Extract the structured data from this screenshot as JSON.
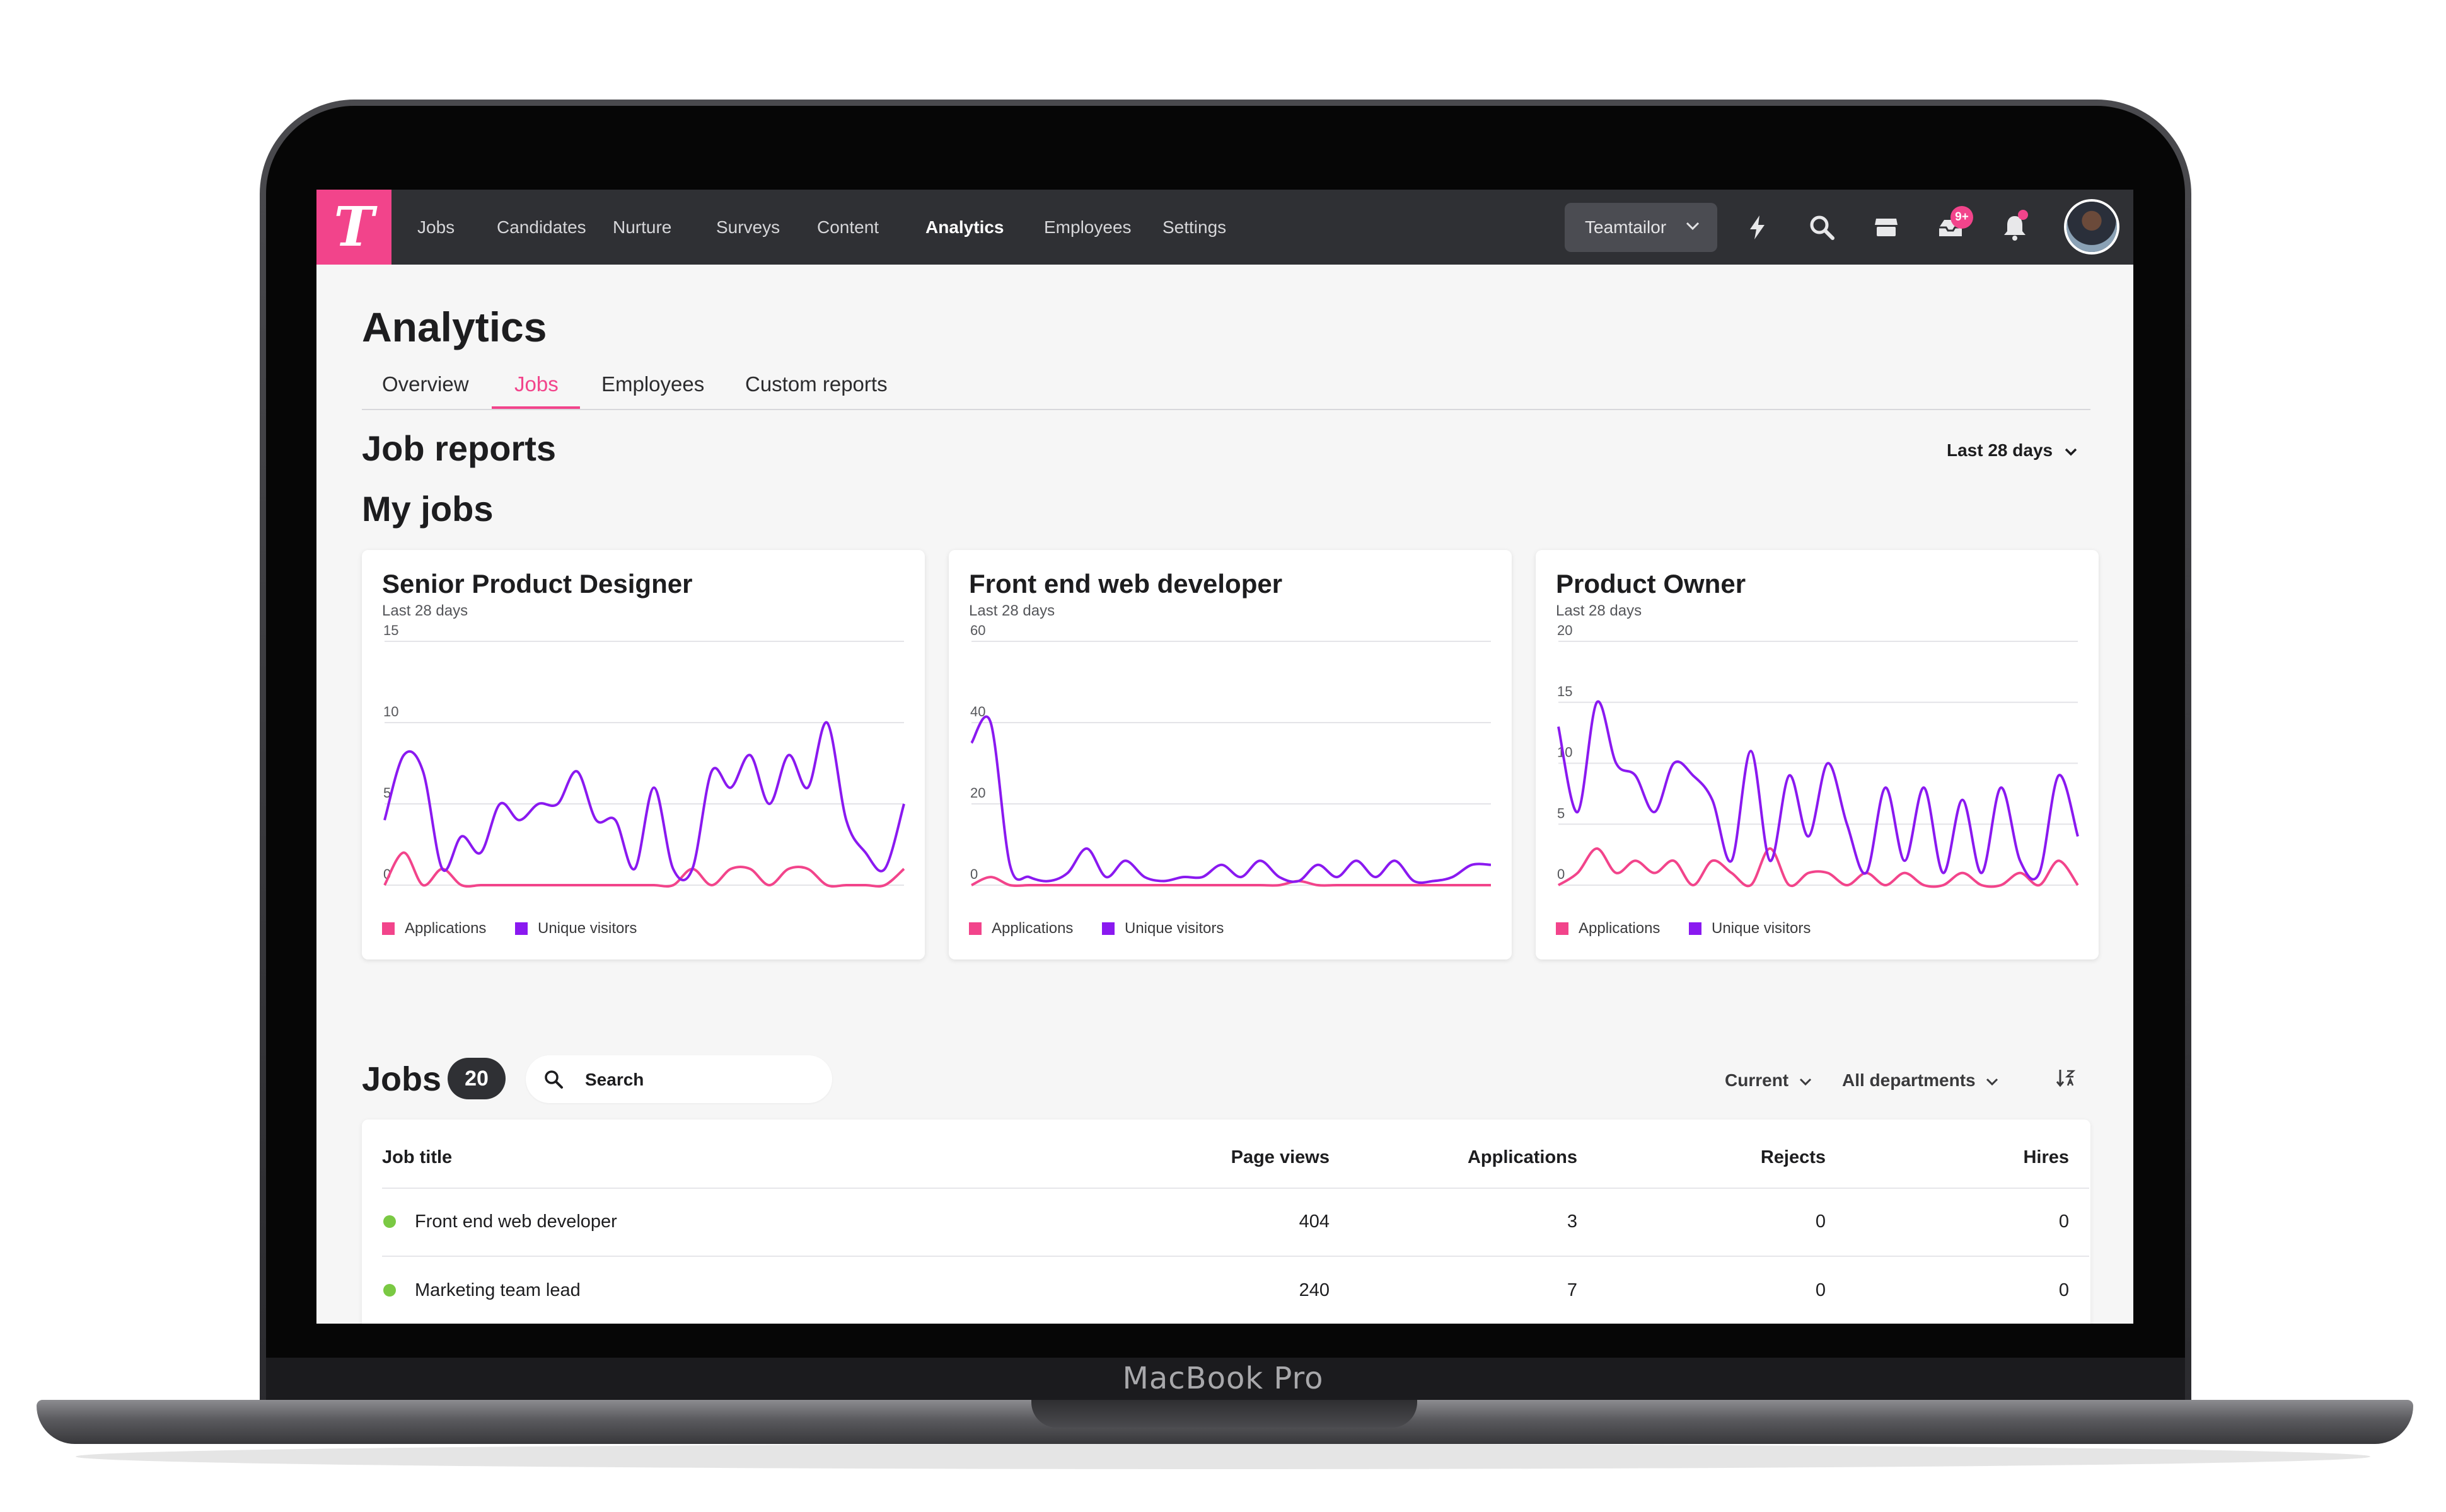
{
  "device": {
    "label": "MacBook Pro"
  },
  "app": {
    "logo_letter": "T",
    "nav": [
      "Jobs",
      "Candidates",
      "Nurture",
      "Surveys",
      "Content",
      "Analytics",
      "Employees",
      "Settings"
    ],
    "active_nav": "Analytics",
    "company_select": "Teamtailor",
    "inbox_badge": "9+",
    "icons": [
      "lightning-icon",
      "search-icon",
      "store-icon",
      "inbox-icon",
      "bell-icon",
      "avatar"
    ]
  },
  "page": {
    "title": "Analytics",
    "tabs": [
      "Overview",
      "Jobs",
      "Employees",
      "Custom reports"
    ],
    "active_tab": "Jobs",
    "section_title": "Job reports",
    "range_select": "Last 28 days",
    "subsection_title": "My jobs"
  },
  "colors": {
    "brand": "#f2448b",
    "applications": "#f2448b",
    "visitors": "#8a19f0",
    "status_active": "#7ac943"
  },
  "chart_data": [
    {
      "type": "line",
      "title": "Senior Product Designer",
      "subtitle": "Last 28 days",
      "ylim": [
        0,
        15
      ],
      "yticks": [
        "0",
        "5",
        "10",
        "15"
      ],
      "grid": true,
      "legend": "bottom-left",
      "series": [
        {
          "name": "Applications",
          "values": [
            0,
            2,
            0,
            1,
            0,
            0,
            0,
            0,
            0,
            0,
            0,
            0,
            0,
            0,
            0,
            0,
            1,
            0,
            1,
            1,
            0,
            1,
            1,
            0,
            0,
            0,
            0,
            1
          ]
        },
        {
          "name": "Unique visitors",
          "values": [
            4,
            8,
            7,
            1,
            3,
            2,
            5,
            4,
            5,
            5,
            7,
            4,
            4,
            1,
            6,
            1,
            1,
            7,
            6,
            8,
            5,
            8,
            6,
            10,
            4,
            2,
            1,
            5
          ]
        }
      ]
    },
    {
      "type": "line",
      "title": "Front end web developer",
      "subtitle": "Last 28 days",
      "ylim": [
        0,
        60
      ],
      "yticks": [
        "0",
        "20",
        "40",
        "60"
      ],
      "grid": true,
      "legend": "bottom-left",
      "series": [
        {
          "name": "Applications",
          "values": [
            0,
            2,
            0,
            0,
            0,
            0,
            0,
            0,
            0,
            0,
            0,
            0,
            0,
            0,
            0,
            0,
            0,
            1,
            0,
            0,
            0,
            0,
            0,
            0,
            0,
            0,
            0,
            0
          ]
        },
        {
          "name": "Unique visitors",
          "values": [
            35,
            40,
            5,
            2,
            1,
            3,
            9,
            2,
            6,
            2,
            1,
            2,
            2,
            5,
            2,
            6,
            2,
            1,
            5,
            2,
            6,
            2,
            6,
            1,
            1,
            2,
            5,
            5
          ]
        }
      ]
    },
    {
      "type": "line",
      "title": "Product Owner",
      "subtitle": "Last 28 days",
      "ylim": [
        0,
        20
      ],
      "yticks": [
        "0",
        "5",
        "10",
        "15",
        "20"
      ],
      "grid": true,
      "legend": "bottom-left",
      "series": [
        {
          "name": "Applications",
          "values": [
            0,
            1,
            3,
            1,
            2,
            1,
            2,
            0,
            2,
            1,
            0,
            3,
            0,
            1,
            1,
            0,
            1,
            0,
            1,
            0,
            0,
            1,
            0,
            0,
            1,
            0,
            2,
            0
          ]
        },
        {
          "name": "Unique visitors",
          "values": [
            13,
            6,
            15,
            10,
            9,
            6,
            10,
            9,
            7,
            2,
            11,
            2,
            9,
            4,
            10,
            5,
            1,
            8,
            2,
            8,
            1,
            7,
            1,
            8,
            2,
            1,
            9,
            4
          ]
        }
      ]
    }
  ],
  "jobs": {
    "title": "Jobs",
    "count": "20",
    "search_placeholder": "Search",
    "filter_status": "Current",
    "filter_department": "All departments",
    "columns": [
      "Job title",
      "Page views",
      "Applications",
      "Rejects",
      "Hires"
    ],
    "rows": [
      {
        "title": "Front end web developer",
        "page_views": "404",
        "applications": "3",
        "rejects": "0",
        "hires": "0",
        "status": "active"
      },
      {
        "title": "Marketing team lead",
        "page_views": "240",
        "applications": "7",
        "rejects": "0",
        "hires": "0",
        "status": "active"
      }
    ]
  }
}
